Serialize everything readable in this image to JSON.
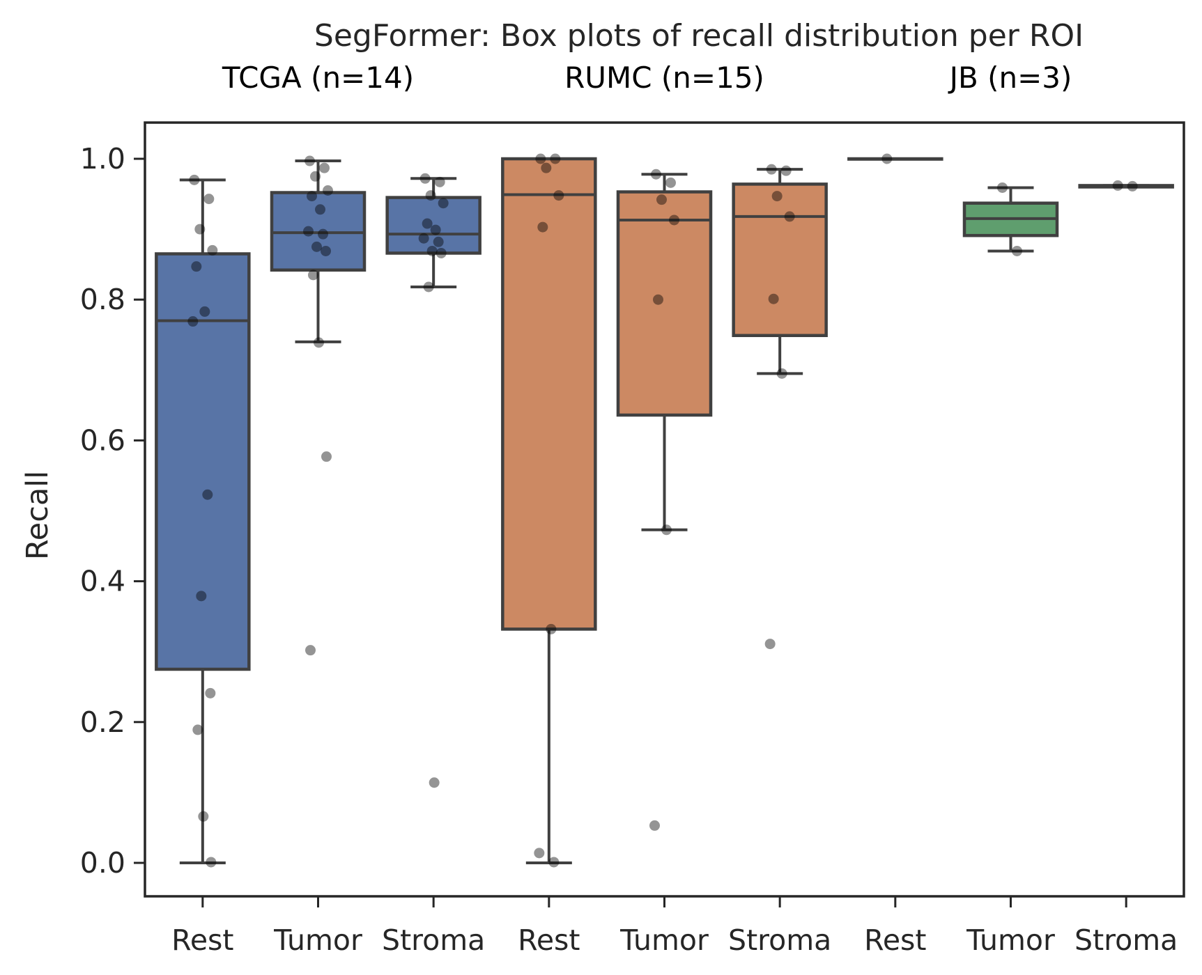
{
  "chart_data": {
    "type": "box",
    "title": "SegFormer: Box plots of recall distribution per ROI",
    "ylabel": "Recall",
    "xlabel": "",
    "ylim": [
      -0.05,
      1.05
    ],
    "yticks": [
      "0.0",
      "0.2",
      "0.4",
      "0.6",
      "0.8",
      "1.0"
    ],
    "grid": false,
    "groups": [
      {
        "label": "TCGA (n=14)",
        "color": "#5874A6",
        "boxes": [
          {
            "category": "Rest",
            "q1": 0.275,
            "median": 0.77,
            "q3": 0.865,
            "whisker_low": 0.0,
            "whisker_high": 0.97,
            "points": [
              0.97,
              0.943,
              0.9,
              0.87,
              0.847,
              0.783,
              0.769,
              0.523,
              0.379,
              0.241,
              0.189,
              0.066,
              0.001
            ]
          },
          {
            "category": "Tumor",
            "q1": 0.842,
            "median": 0.895,
            "q3": 0.952,
            "whisker_low": 0.74,
            "whisker_high": 0.997,
            "points": [
              0.997,
              0.987,
              0.975,
              0.955,
              0.947,
              0.928,
              0.897,
              0.893,
              0.875,
              0.869,
              0.835,
              0.739,
              0.577,
              0.302
            ]
          },
          {
            "category": "Stroma",
            "q1": 0.866,
            "median": 0.893,
            "q3": 0.945,
            "whisker_low": 0.818,
            "whisker_high": 0.972,
            "points": [
              0.972,
              0.967,
              0.948,
              0.937,
              0.908,
              0.899,
              0.887,
              0.882,
              0.869,
              0.866,
              0.818,
              0.114
            ]
          }
        ]
      },
      {
        "label": "RUMC (n=15)",
        "color": "#CC8963",
        "boxes": [
          {
            "category": "Rest",
            "q1": 0.332,
            "median": 0.949,
            "q3": 1.0,
            "whisker_low": 0.0,
            "whisker_high": 1.0,
            "points": [
              1.0,
              1.0,
              0.987,
              0.948,
              0.903,
              0.332,
              0.014,
              0.001
            ]
          },
          {
            "category": "Tumor",
            "q1": 0.636,
            "median": 0.913,
            "q3": 0.953,
            "whisker_low": 0.473,
            "whisker_high": 0.978,
            "points": [
              0.978,
              0.966,
              0.942,
              0.913,
              0.8,
              0.473,
              0.053
            ]
          },
          {
            "category": "Stroma",
            "q1": 0.749,
            "median": 0.918,
            "q3": 0.964,
            "whisker_low": 0.695,
            "whisker_high": 0.985,
            "points": [
              0.985,
              0.983,
              0.947,
              0.918,
              0.801,
              0.695,
              0.311
            ]
          }
        ]
      },
      {
        "label": "JB (n=3)",
        "color": "#5F9E6E",
        "boxes": [
          {
            "category": "Rest",
            "q1": 1.0,
            "median": 1.0,
            "q3": 1.0,
            "whisker_low": 1.0,
            "whisker_high": 1.0,
            "points": [
              1.0
            ]
          },
          {
            "category": "Tumor",
            "q1": 0.891,
            "median": 0.915,
            "q3": 0.937,
            "whisker_low": 0.869,
            "whisker_high": 0.959,
            "points": [
              0.959,
              0.869
            ]
          },
          {
            "category": "Stroma",
            "q1": 0.96,
            "median": 0.961,
            "q3": 0.962,
            "whisker_low": 0.96,
            "whisker_high": 0.962,
            "points": [
              0.962,
              0.961
            ]
          }
        ]
      }
    ]
  }
}
